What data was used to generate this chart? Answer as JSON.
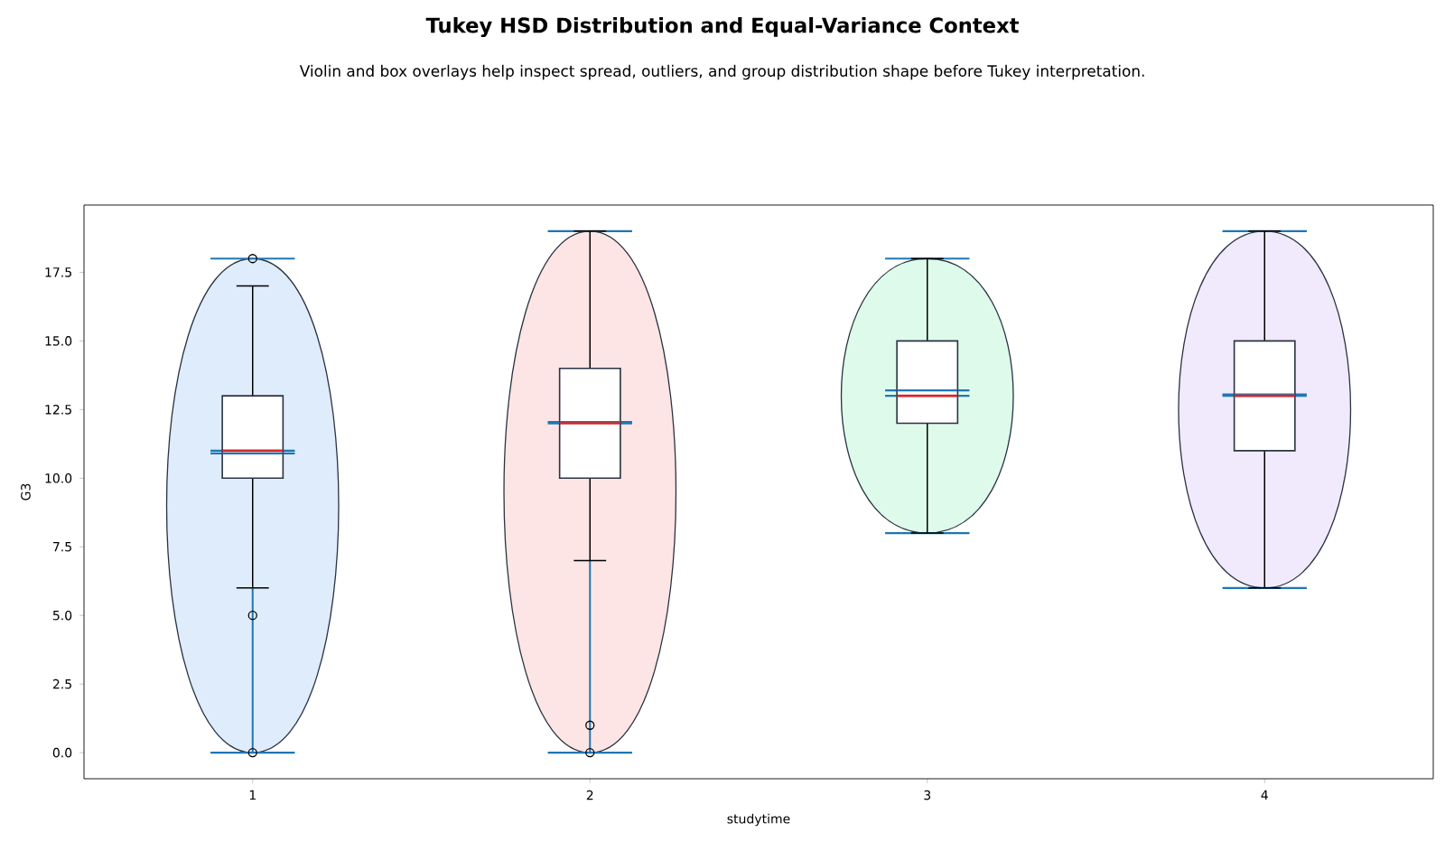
{
  "chart_data": {
    "type": "box",
    "title": "Tukey HSD Distribution and Equal-Variance Context",
    "subtitle": "Violin and box overlays help inspect spread, outliers, and group distribution shape before Tukey interpretation.",
    "xlabel": "studytime",
    "ylabel": "G3",
    "categories": [
      "1",
      "2",
      "3",
      "4"
    ],
    "boxes": [
      {
        "low": 6,
        "q1": 10,
        "median": 11,
        "q3": 13,
        "high": 17,
        "mean": 10.9,
        "outliers": [
          18,
          5,
          0
        ]
      },
      {
        "low": 7,
        "q1": 10,
        "median": 12,
        "q3": 14,
        "high": 19,
        "mean": 12.05,
        "outliers": [
          1,
          0
        ]
      },
      {
        "low": 8,
        "q1": 12,
        "median": 13,
        "q3": 15,
        "high": 18,
        "mean": 13.2
      },
      {
        "low": 6,
        "q1": 11,
        "median": 13,
        "q3": 15,
        "high": 19,
        "mean": 13.05
      }
    ],
    "ylim": [
      -0.95,
      19.95
    ],
    "yticks": [
      {
        "value": 0,
        "label": "0.0"
      },
      {
        "value": 2.5,
        "label": "2.5"
      },
      {
        "value": 5,
        "label": "5.0"
      },
      {
        "value": 7.5,
        "label": "7.5"
      },
      {
        "value": 10,
        "label": "10.0"
      },
      {
        "value": 12.5,
        "label": "12.5"
      },
      {
        "value": 15,
        "label": "15.0"
      },
      {
        "value": 17.5,
        "label": "17.5"
      }
    ],
    "grid": false
  }
}
